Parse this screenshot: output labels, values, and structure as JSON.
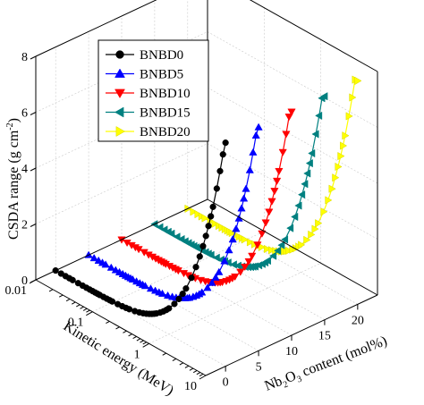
{
  "chart_data": {
    "type": "line",
    "style": "3d-waterfall",
    "title": "",
    "ylabel": "CSDA range (g cm",
    "ylabel_sup": "-2",
    "ylabel_end": ")",
    "xlabel": "Kinetic energy (MeV)",
    "zlabel_parts": [
      "Nb",
      "2",
      "O",
      "3",
      " content (mol%)"
    ],
    "energy_scale": "log",
    "energy_range": [
      0.01,
      10
    ],
    "energy_ticks": [
      "0.01",
      "0.1",
      "1",
      "10"
    ],
    "energy_tick_values": [
      0.01,
      0.1,
      1,
      10
    ],
    "content_range": [
      -3,
      23
    ],
    "content_ticks": [
      "0",
      "5",
      "10",
      "15",
      "20"
    ],
    "content_tick_values": [
      0,
      5,
      10,
      15,
      20
    ],
    "csda_range": [
      0,
      8
    ],
    "csda_ticks": [
      "0",
      "2",
      "4",
      "6",
      "8"
    ],
    "csda_tick_values": [
      0,
      2,
      4,
      6,
      8
    ],
    "grid": true,
    "legend_position": "top-left",
    "energy_values": [
      0.01,
      0.0125,
      0.015,
      0.0175,
      0.02,
      0.025,
      0.03,
      0.035,
      0.04,
      0.045,
      0.05,
      0.055,
      0.06,
      0.07,
      0.08,
      0.09,
      0.1,
      0.125,
      0.15,
      0.175,
      0.2,
      0.25,
      0.3,
      0.35,
      0.4,
      0.45,
      0.5,
      0.55,
      0.6,
      0.7,
      0.8,
      0.9,
      1,
      1.25,
      1.5,
      1.75,
      2,
      2.5,
      3,
      3.5,
      4,
      4.5,
      5,
      5.5,
      6,
      7,
      8,
      9,
      10
    ],
    "series": [
      {
        "name": "BNBD0",
        "content": 0,
        "color": "#000000",
        "marker": "circle",
        "values": [
          0.00085,
          0.0012,
          0.0016,
          0.0021,
          0.0026,
          0.0037,
          0.005,
          0.0064,
          0.0079,
          0.0096,
          0.0114,
          0.0133,
          0.0153,
          0.0196,
          0.0243,
          0.0293,
          0.0346,
          0.0493,
          0.0657,
          0.0835,
          0.1024,
          0.1436,
          0.1883,
          0.2356,
          0.285,
          0.336,
          0.388,
          0.441,
          0.494,
          0.602,
          0.711,
          0.82,
          0.929,
          1.2,
          1.466,
          1.727,
          1.983,
          2.478,
          2.952,
          3.407,
          3.845,
          4.267,
          4.675,
          5.069,
          5.451,
          6.182,
          6.874,
          7.529,
          8.152
        ]
      },
      {
        "name": "BNBD5",
        "content": 5,
        "color": "#0000ff",
        "marker": "triangle-up",
        "values": [
          0.00087,
          0.00122,
          0.00163,
          0.00213,
          0.00264,
          0.00376,
          0.00508,
          0.0065,
          0.00802,
          0.00975,
          0.0116,
          0.0135,
          0.0155,
          0.0199,
          0.0247,
          0.0298,
          0.0352,
          0.0501,
          0.0668,
          0.0849,
          0.1041,
          0.146,
          0.1914,
          0.2395,
          0.2897,
          0.3416,
          0.3944,
          0.4483,
          0.5022,
          0.612,
          0.7228,
          0.8336,
          0.9444,
          1.2198,
          1.4902,
          1.7555,
          2.0158,
          2.5189,
          3.0007,
          3.4633,
          3.9086,
          4.3375,
          4.7523,
          5.1528,
          5.5411,
          6.2843,
          6.9877,
          7.6535,
          8.2868
        ]
      },
      {
        "name": "BNBD10",
        "content": 10,
        "color": "#ff0000",
        "marker": "triangle-down",
        "values": [
          0.00089,
          0.00124,
          0.00166,
          0.00217,
          0.00268,
          0.00382,
          0.00516,
          0.0066,
          0.00815,
          0.0099,
          0.0118,
          0.0137,
          0.0158,
          0.0202,
          0.0251,
          0.0302,
          0.0357,
          0.0509,
          0.0678,
          0.0862,
          0.1057,
          0.1482,
          0.1943,
          0.2431,
          0.2941,
          0.3468,
          0.4004,
          0.4551,
          0.5098,
          0.6212,
          0.7337,
          0.8462,
          0.9587,
          1.2382,
          1.5127,
          1.782,
          2.0463,
          2.557,
          3.0461,
          3.5157,
          3.9677,
          4.4031,
          4.8242,
          5.2307,
          5.6249,
          6.3793,
          7.0933,
          7.7692,
          8.4121
        ]
      },
      {
        "name": "BNBD15",
        "content": 15,
        "color": "#008080",
        "marker": "triangle-left",
        "values": [
          0.0009,
          0.00126,
          0.00169,
          0.0022,
          0.00272,
          0.00388,
          0.00524,
          0.0067,
          0.00827,
          0.01005,
          0.0119,
          0.0139,
          0.016,
          0.0205,
          0.0254,
          0.0307,
          0.0362,
          0.0516,
          0.0688,
          0.0874,
          0.1072,
          0.1503,
          0.1971,
          0.2466,
          0.2983,
          0.3518,
          0.4061,
          0.4616,
          0.5171,
          0.6301,
          0.7442,
          0.8583,
          0.9724,
          1.2559,
          1.5343,
          1.8075,
          2.0755,
          2.5935,
          3.0896,
          3.5659,
          4.0244,
          4.466,
          4.8931,
          5.3055,
          5.7053,
          6.4704,
          7.1947,
          7.8802,
          8.5323
        ]
      },
      {
        "name": "BNBD20",
        "content": 20,
        "color": "#ffff00",
        "marker": "triangle-right",
        "values": [
          0.00091,
          0.00128,
          0.00171,
          0.00223,
          0.00276,
          0.00393,
          0.00531,
          0.0068,
          0.00839,
          0.0102,
          0.0121,
          0.0141,
          0.0162,
          0.0208,
          0.0258,
          0.0311,
          0.0367,
          0.0523,
          0.0697,
          0.0886,
          0.1087,
          0.1524,
          0.1998,
          0.25,
          0.3024,
          0.3566,
          0.4117,
          0.4679,
          0.5242,
          0.6388,
          0.7544,
          0.8701,
          0.9858,
          1.2732,
          1.5554,
          1.8323,
          2.104,
          2.6291,
          3.132,
          3.6149,
          4.0796,
          4.5273,
          4.9603,
          5.3784,
          5.7837,
          6.5593,
          7.2935,
          7.9884,
          8.6495
        ]
      }
    ]
  }
}
